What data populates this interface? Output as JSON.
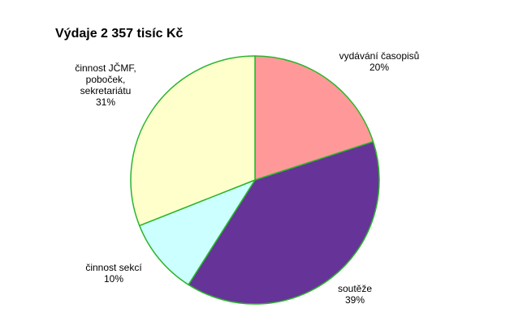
{
  "chart_data": {
    "type": "pie",
    "title": "Výdaje 2 357 tisíc Kč",
    "start_angle_deg": 0,
    "direction": "clockwise",
    "slice_border_color": "#2bb52b",
    "slices": [
      {
        "label": [
          "vydávání časopisů"
        ],
        "pct_label": "20%",
        "value": 20,
        "color": "#ff9999"
      },
      {
        "label": [
          "soutěže"
        ],
        "pct_label": "39%",
        "value": 39,
        "color": "#663399"
      },
      {
        "label": [
          "činnost sekcí"
        ],
        "pct_label": "10%",
        "value": 10,
        "color": "#ccffff"
      },
      {
        "label": [
          "činnost JČMF,",
          "poboček,",
          "sekretariátu"
        ],
        "pct_label": "31%",
        "value": 31,
        "color": "#ffffcc"
      }
    ]
  }
}
